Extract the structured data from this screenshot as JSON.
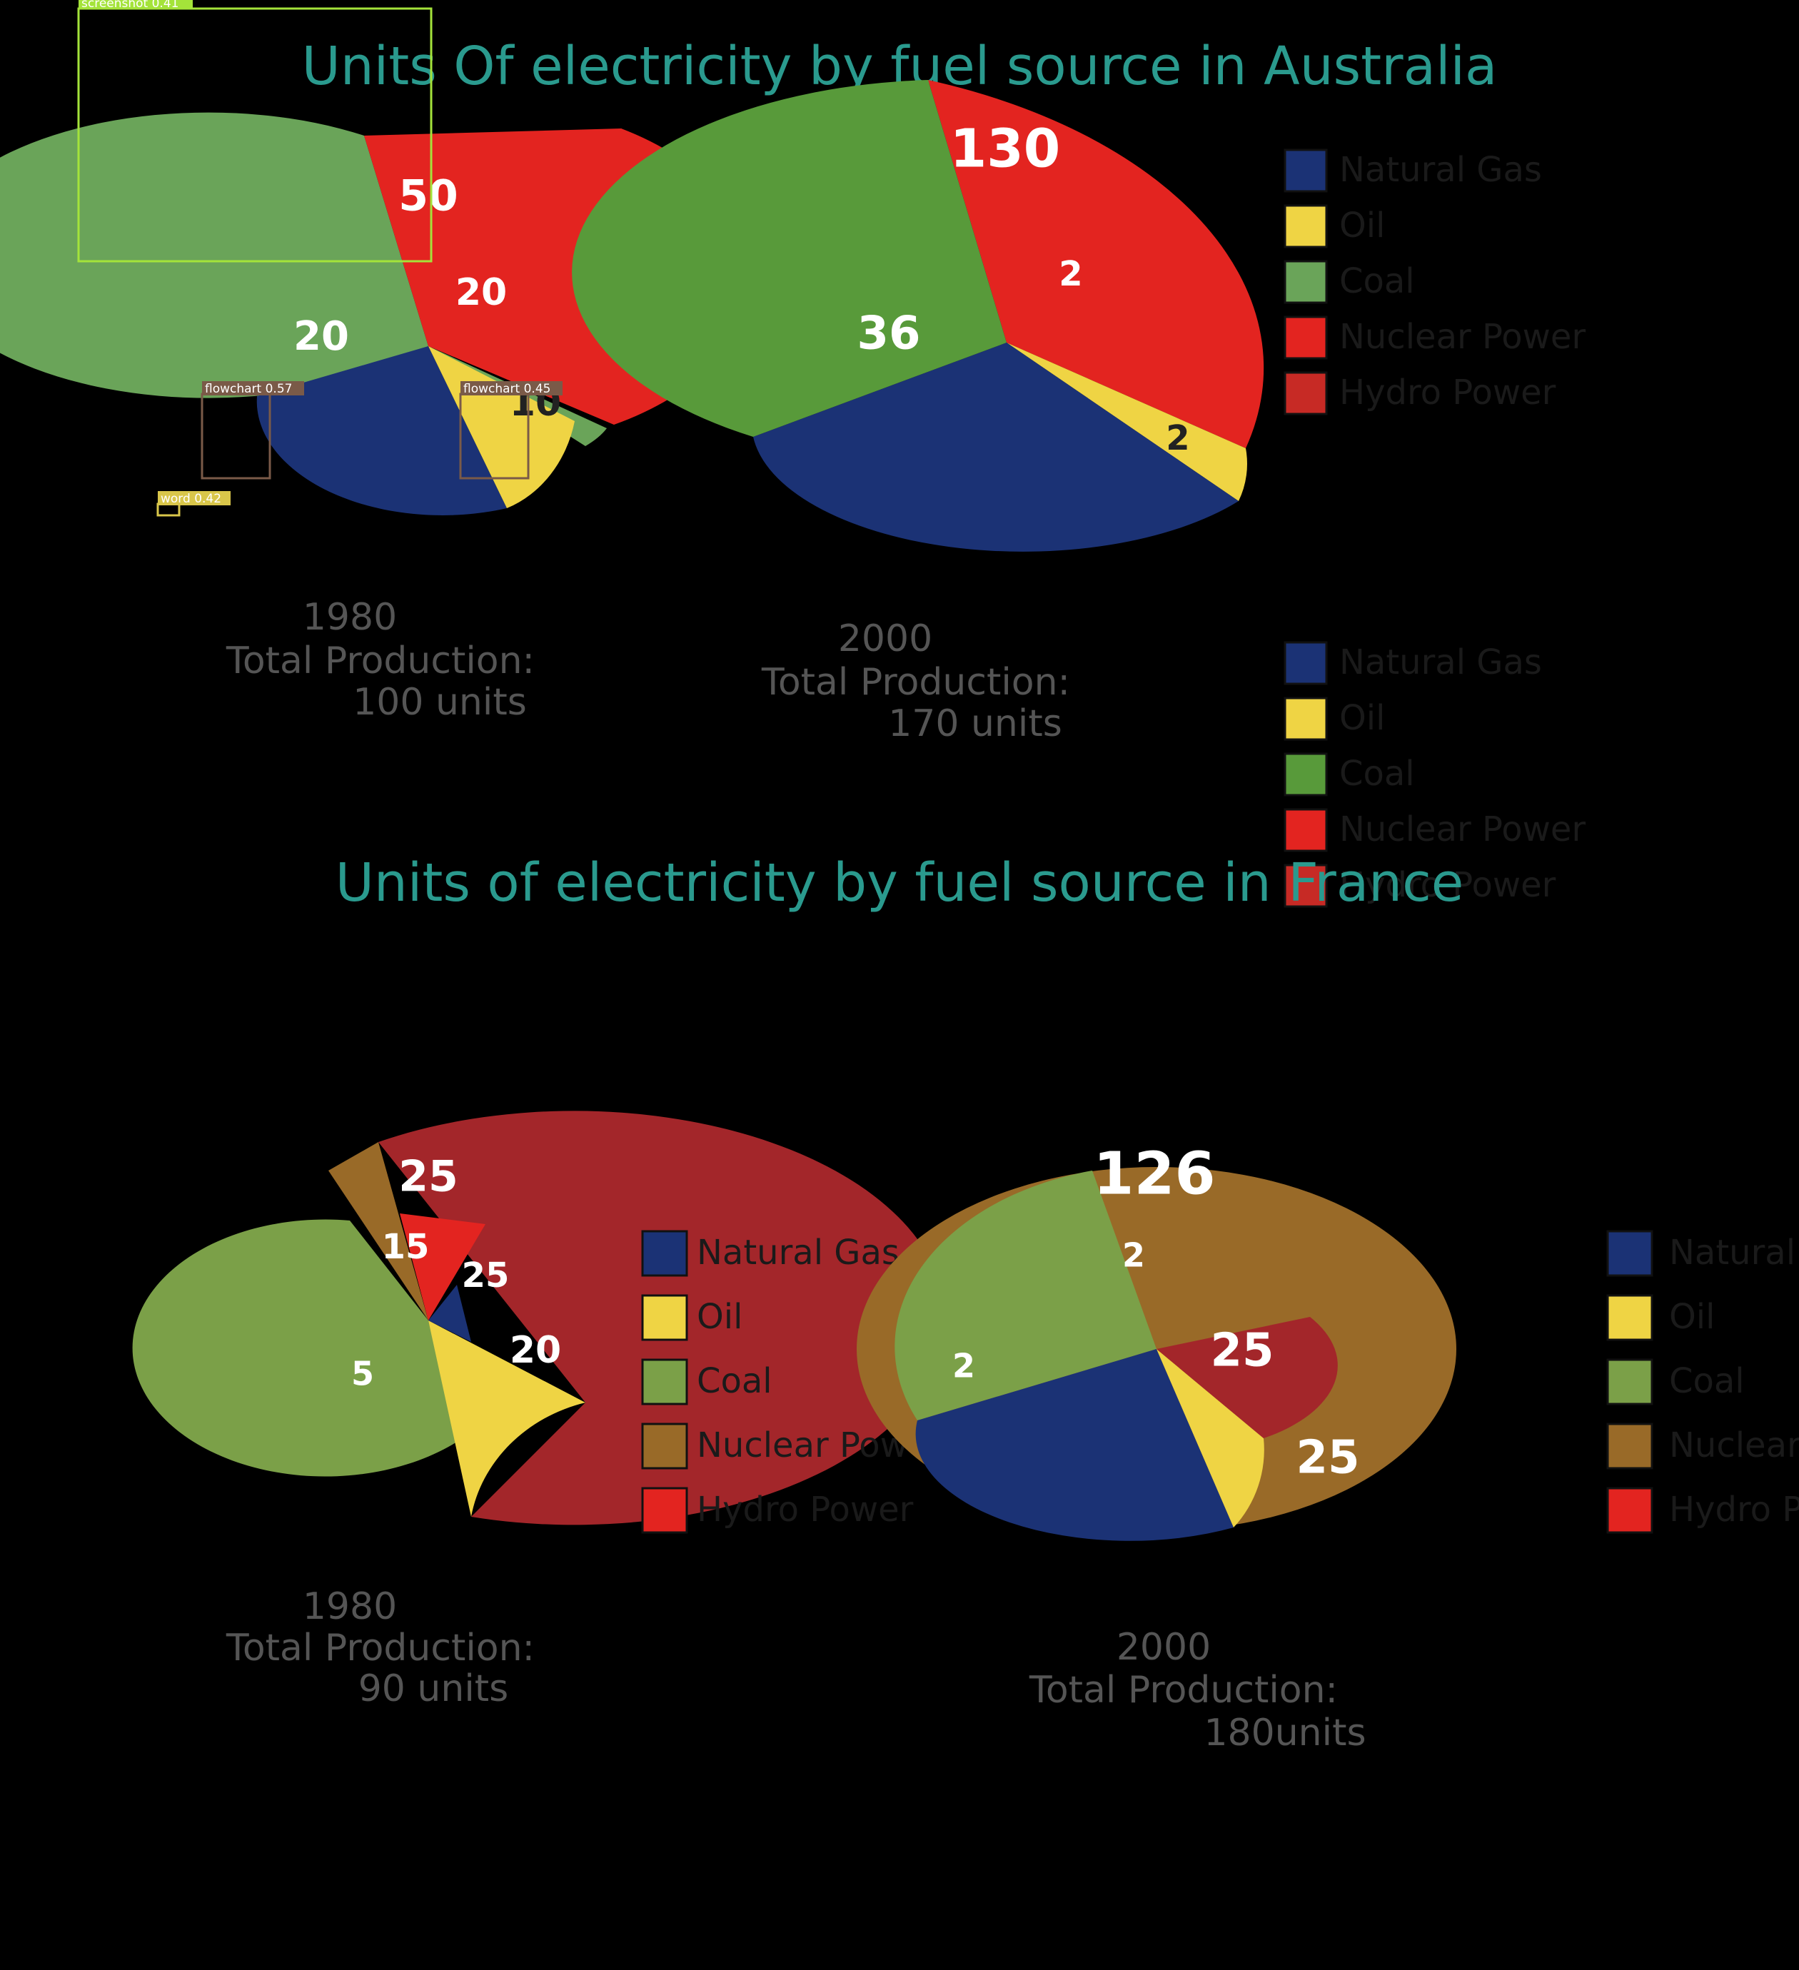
{
  "titles": {
    "australia": "Units Of electricity by fuel source in Australia",
    "france": "Units of electricity by fuel source in France"
  },
  "colors": {
    "natural_gas": "#1b3275",
    "oil": "#efd444",
    "coal_au_1980": "#6aa459",
    "coal_au_2000": "#589a3a",
    "coal_fr": "#7ba048",
    "nuclear_au": "#e32420",
    "nuclear_fr": "#996a28",
    "hydro_au": "#c72a25",
    "hydro_fr_dark": "#a3262a",
    "hydro_fr_bright": "#e32420"
  },
  "legend_labels": [
    "Natural Gas",
    "Oil",
    "Coal",
    "Nuclear Power",
    "Hydro Power"
  ],
  "captions": {
    "au_1980": {
      "year": "1980",
      "line1": "Total Production:",
      "line2": "100 units"
    },
    "au_2000": {
      "year": "2000",
      "line1": "Total Production:",
      "line2": "170 units"
    },
    "fr_1980": {
      "year": "1980",
      "line1": "Total Production:",
      "line2": "90 units"
    },
    "fr_2000": {
      "year": "2000",
      "line1": "Total Production:",
      "line2": "180units"
    }
  },
  "detections": [
    {
      "label": "screenshot 0.41",
      "color": "#a4e33a"
    },
    {
      "label": "flowchart 0.57",
      "color": "#7a5a48"
    },
    {
      "label": "flowchart 0.45",
      "color": "#7a5a48"
    },
    {
      "label": "word 0.42",
      "color": "#d9c64a"
    }
  ],
  "chart_data": [
    {
      "type": "pie",
      "country": "Australia",
      "year": "1980",
      "total": "100 units",
      "slices": [
        {
          "name": "Coal",
          "value": 20
        },
        {
          "name": "Nuclear Power",
          "value": 50
        },
        {
          "name": "Hydro Power",
          "value": 20
        },
        {
          "name": "Oil",
          "value": 10
        },
        {
          "name": "Natural Gas",
          "value": null
        }
      ]
    },
    {
      "type": "pie",
      "country": "Australia",
      "year": "2000",
      "total": "170 units",
      "slices": [
        {
          "name": "Coal",
          "value": 36
        },
        {
          "name": "Nuclear Power",
          "value": 130
        },
        {
          "name": "Hydro Power",
          "value": 2
        },
        {
          "name": "Oil",
          "value": 2
        },
        {
          "name": "Natural Gas",
          "value": null
        }
      ]
    },
    {
      "type": "pie",
      "country": "France",
      "year": "1980",
      "total": "90 units",
      "slices": [
        {
          "name": "Nuclear Power",
          "value": 25
        },
        {
          "name": "Hydro Power",
          "value": 15
        },
        {
          "name": "Natural Gas",
          "value": 25
        },
        {
          "name": "Oil",
          "value": 20
        },
        {
          "name": "Coal",
          "value": 5
        }
      ]
    },
    {
      "type": "pie",
      "country": "France",
      "year": "2000",
      "total": "180units",
      "slices": [
        {
          "name": "Nuclear Power",
          "value": 126
        },
        {
          "name": "Coal",
          "value": 2
        },
        {
          "name": "Natural Gas",
          "value": 2
        },
        {
          "name": "Hydro Power",
          "value": 25
        },
        {
          "name": "Oil",
          "value": 25
        }
      ]
    }
  ]
}
